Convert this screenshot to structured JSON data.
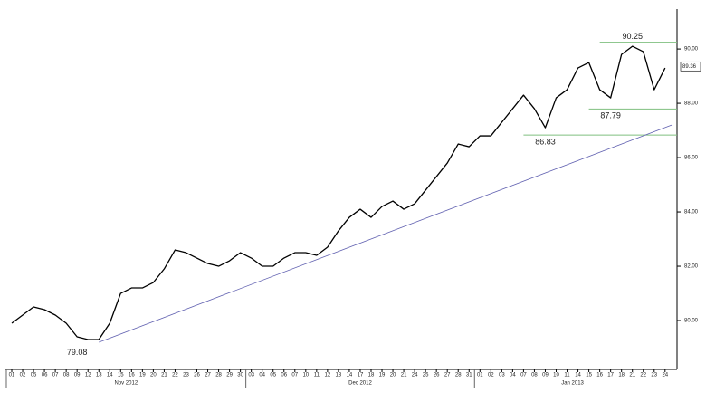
{
  "chart_data": {
    "type": "line",
    "categories": [
      "01",
      "02",
      "05",
      "06",
      "07",
      "08",
      "09",
      "12",
      "13",
      "14",
      "15",
      "16",
      "19",
      "20",
      "21",
      "22",
      "23",
      "26",
      "27",
      "28",
      "29",
      "30",
      "03",
      "04",
      "05",
      "06",
      "07",
      "10",
      "11",
      "12",
      "13",
      "14",
      "17",
      "18",
      "19",
      "20",
      "21",
      "24",
      "25",
      "26",
      "27",
      "28",
      "31",
      "01",
      "02",
      "03",
      "04",
      "07",
      "08",
      "09",
      "10",
      "11",
      "14",
      "15",
      "16",
      "17",
      "18",
      "21",
      "22",
      "23",
      "24"
    ],
    "months": [
      {
        "label": "Nov 2012",
        "start": 0,
        "end": 22
      },
      {
        "label": "Dec 2012",
        "start": 22,
        "end": 43
      },
      {
        "label": "Jan 2013",
        "start": 43,
        "end": 61
      }
    ],
    "series": [
      {
        "name": "Price",
        "color": "#000000",
        "values": [
          79.9,
          80.2,
          80.5,
          80.4,
          80.2,
          79.9,
          79.4,
          79.3,
          79.3,
          79.9,
          81.0,
          81.2,
          81.2,
          81.4,
          81.9,
          82.6,
          82.5,
          82.3,
          82.1,
          82.0,
          82.2,
          82.5,
          82.3,
          82.0,
          82.0,
          82.3,
          82.5,
          82.5,
          82.4,
          82.7,
          83.3,
          83.8,
          84.1,
          83.8,
          84.2,
          84.4,
          84.1,
          84.3,
          84.8,
          85.3,
          85.8,
          86.5,
          86.4,
          86.8,
          86.8,
          87.3,
          87.8,
          88.3,
          87.8,
          87.1,
          88.2,
          88.5,
          89.3,
          89.5,
          88.5,
          88.2,
          89.8,
          90.1,
          89.9,
          88.5,
          89.3
        ]
      }
    ],
    "ylim": [
      78.2,
      91.47
    ],
    "yticks": [
      {
        "value": 80,
        "label": "80.00"
      },
      {
        "value": 82,
        "label": "82.00"
      },
      {
        "value": 84,
        "label": "84.00"
      },
      {
        "value": 86,
        "label": "86.00"
      },
      {
        "value": 88,
        "label": "88.00"
      },
      {
        "value": 90,
        "label": "90.00"
      }
    ],
    "annotations": [
      {
        "value": 79.08,
        "label": "79.08",
        "category_index": 6
      },
      {
        "value": 86.83,
        "label": "86.83",
        "category_index": 49
      },
      {
        "value": 87.79,
        "label": "87.79",
        "category_index": 55
      },
      {
        "value": 90.25,
        "label": "90.25",
        "category_index": 57
      }
    ],
    "levels": [
      {
        "value": 90.25,
        "start_index": 54,
        "color": "#7fbf7f"
      },
      {
        "value": 87.79,
        "start_index": 53,
        "color": "#7fbf7f"
      },
      {
        "value": 86.83,
        "start_index": 47,
        "color": "#7fbf7f"
      }
    ],
    "trendline": {
      "from": [
        8,
        79.2
      ],
      "to": [
        60.6,
        87.2
      ],
      "color": "#6060b0"
    },
    "last": {
      "value": 89.36,
      "label": "89.36"
    }
  }
}
